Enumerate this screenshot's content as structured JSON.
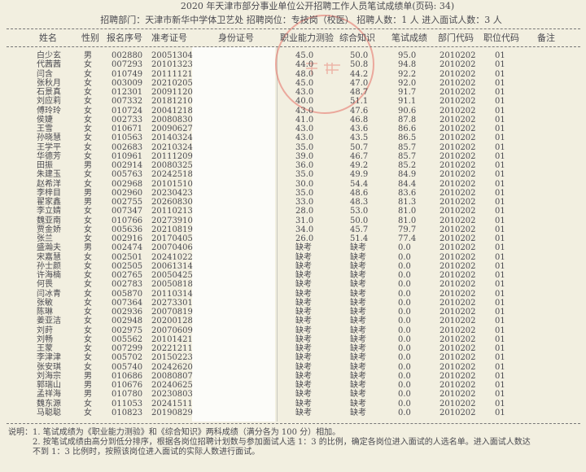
{
  "title": "2020 年天津市部分事业单位公开招聘工作人员笔试成绩单(页码:    34)",
  "subtitle": "招聘部门：天津市新华中学体卫艺处  招聘岗位：专技岗（校医）  招聘人数：1 人  进入面试人数：3 人",
  "stamp_text": "天津市新华中学",
  "colors": {
    "background": "#f2efe0",
    "stamp": "#e66e64",
    "text": "#4a4a50"
  },
  "columns": [
    "姓名",
    "性别",
    "报名序号",
    "准考证号",
    "身份证号",
    "职业能力测验",
    "综合知识",
    "笔试成绩",
    "部门代码",
    "职位代码",
    "备注"
  ],
  "rows": [
    {
      "name": "白少玄",
      "gender": "男",
      "reg": "002880",
      "ticket": "20051304",
      "ability": "45.0",
      "knowledge": "50.0",
      "score": "95.0",
      "dept": "2010202",
      "pos": "01"
    },
    {
      "name": "代茜茜",
      "gender": "女",
      "reg": "007293",
      "ticket": "20101323",
      "ability": "44.0",
      "knowledge": "50.8",
      "score": "94.8",
      "dept": "2010202",
      "pos": "01"
    },
    {
      "name": "闫含",
      "gender": "女",
      "reg": "010749",
      "ticket": "20111121",
      "ability": "48.0",
      "knowledge": "44.2",
      "score": "92.2",
      "dept": "2010202",
      "pos": "01"
    },
    {
      "name": "张秋月",
      "gender": "女",
      "reg": "003009",
      "ticket": "20210205",
      "ability": "45.0",
      "knowledge": "47.0",
      "score": "92.0",
      "dept": "2010202",
      "pos": "01"
    },
    {
      "name": "石景真",
      "gender": "女",
      "reg": "012301",
      "ticket": "20091120",
      "ability": "43.0",
      "knowledge": "48.7",
      "score": "91.7",
      "dept": "2010202",
      "pos": "01"
    },
    {
      "name": "刘应莉",
      "gender": "女",
      "reg": "007332",
      "ticket": "20181210",
      "ability": "40.0",
      "knowledge": "51.1",
      "score": "91.1",
      "dept": "2010202",
      "pos": "01"
    },
    {
      "name": "傅玲玲",
      "gender": "女",
      "reg": "010724",
      "ticket": "20041218",
      "ability": "43.0",
      "knowledge": "47.6",
      "score": "90.6",
      "dept": "2010202",
      "pos": "01"
    },
    {
      "name": "侯婕",
      "gender": "女",
      "reg": "002733",
      "ticket": "20080830",
      "ability": "41.0",
      "knowledge": "46.8",
      "score": "87.8",
      "dept": "2010202",
      "pos": "01"
    },
    {
      "name": "王雪",
      "gender": "女",
      "reg": "010671",
      "ticket": "20090627",
      "ability": "43.0",
      "knowledge": "43.6",
      "score": "86.6",
      "dept": "2010202",
      "pos": "01"
    },
    {
      "name": "孙晓慧",
      "gender": "女",
      "reg": "010563",
      "ticket": "20140324",
      "ability": "43.0",
      "knowledge": "43.5",
      "score": "86.5",
      "dept": "2010202",
      "pos": "01"
    },
    {
      "name": "王学平",
      "gender": "女",
      "reg": "002683",
      "ticket": "20210324",
      "ability": "35.0",
      "knowledge": "50.7",
      "score": "85.7",
      "dept": "2010202",
      "pos": "01"
    },
    {
      "name": "华德芳",
      "gender": "女",
      "reg": "010961",
      "ticket": "20111209",
      "ability": "39.0",
      "knowledge": "46.7",
      "score": "85.7",
      "dept": "2010202",
      "pos": "01"
    },
    {
      "name": "田振",
      "gender": "男",
      "reg": "002914",
      "ticket": "20080325",
      "ability": "36.0",
      "knowledge": "49.2",
      "score": "85.2",
      "dept": "2010202",
      "pos": "01"
    },
    {
      "name": "朱建玉",
      "gender": "女",
      "reg": "005763",
      "ticket": "20242518",
      "ability": "35.0",
      "knowledge": "49.9",
      "score": "84.9",
      "dept": "2010202",
      "pos": "01"
    },
    {
      "name": "赵希洋",
      "gender": "女",
      "reg": "002968",
      "ticket": "20101510",
      "ability": "30.0",
      "knowledge": "54.4",
      "score": "84.4",
      "dept": "2010202",
      "pos": "01"
    },
    {
      "name": "李梓目",
      "gender": "男",
      "reg": "002960",
      "ticket": "20230423",
      "ability": "35.0",
      "knowledge": "48.6",
      "score": "83.6",
      "dept": "2010202",
      "pos": "01"
    },
    {
      "name": "翟家鑫",
      "gender": "男",
      "reg": "002755",
      "ticket": "20260830",
      "ability": "33.0",
      "knowledge": "48.3",
      "score": "81.3",
      "dept": "2010202",
      "pos": "01"
    },
    {
      "name": "李立婧",
      "gender": "女",
      "reg": "007347",
      "ticket": "20110213",
      "ability": "28.0",
      "knowledge": "53.0",
      "score": "81.0",
      "dept": "2010202",
      "pos": "01"
    },
    {
      "name": "魏亚南",
      "gender": "女",
      "reg": "010766",
      "ticket": "20273910",
      "ability": "31.0",
      "knowledge": "50.0",
      "score": "81.0",
      "dept": "2010202",
      "pos": "01"
    },
    {
      "name": "贾金娇",
      "gender": "女",
      "reg": "005636",
      "ticket": "20210819",
      "ability": "34.0",
      "knowledge": "45.7",
      "score": "79.7",
      "dept": "2010202",
      "pos": "01"
    },
    {
      "name": "张兰",
      "gender": "女",
      "reg": "002916",
      "ticket": "20170405",
      "ability": "26.0",
      "knowledge": "51.4",
      "score": "77.4",
      "dept": "2010202",
      "pos": "01"
    },
    {
      "name": "盛瀚夫",
      "gender": "男",
      "reg": "002474",
      "ticket": "20070406",
      "ability": "缺考",
      "knowledge": "缺考",
      "score": "0.0",
      "dept": "2010202",
      "pos": "01"
    },
    {
      "name": "宋嘉慧",
      "gender": "女",
      "reg": "002501",
      "ticket": "20241022",
      "ability": "缺考",
      "knowledge": "缺考",
      "score": "0.0",
      "dept": "2010202",
      "pos": "01"
    },
    {
      "name": "孙士颜",
      "gender": "女",
      "reg": "002505",
      "ticket": "20061314",
      "ability": "缺考",
      "knowledge": "缺考",
      "score": "0.0",
      "dept": "2010202",
      "pos": "01"
    },
    {
      "name": "许海楠",
      "gender": "女",
      "reg": "002765",
      "ticket": "20050425",
      "ability": "缺考",
      "knowledge": "缺考",
      "score": "0.0",
      "dept": "2010202",
      "pos": "01"
    },
    {
      "name": "何畏",
      "gender": "女",
      "reg": "002783",
      "ticket": "20050818",
      "ability": "缺考",
      "knowledge": "缺考",
      "score": "0.0",
      "dept": "2010202",
      "pos": "01"
    },
    {
      "name": "闫冰青",
      "gender": "女",
      "reg": "005870",
      "ticket": "20110314",
      "ability": "缺考",
      "knowledge": "缺考",
      "score": "0.0",
      "dept": "2010202",
      "pos": "01"
    },
    {
      "name": "张敏",
      "gender": "女",
      "reg": "007364",
      "ticket": "20273301",
      "ability": "缺考",
      "knowledge": "缺考",
      "score": "0.0",
      "dept": "2010202",
      "pos": "01"
    },
    {
      "name": "陈琳",
      "gender": "女",
      "reg": "002936",
      "ticket": "20070819",
      "ability": "缺考",
      "knowledge": "缺考",
      "score": "0.0",
      "dept": "2010202",
      "pos": "01"
    },
    {
      "name": "姜亚洁",
      "gender": "女",
      "reg": "002948",
      "ticket": "20200128",
      "ability": "缺考",
      "knowledge": "缺考",
      "score": "0.0",
      "dept": "2010202",
      "pos": "01"
    },
    {
      "name": "刘莳",
      "gender": "女",
      "reg": "002975",
      "ticket": "20070609",
      "ability": "缺考",
      "knowledge": "缺考",
      "score": "0.0",
      "dept": "2010202",
      "pos": "01"
    },
    {
      "name": "刘畅",
      "gender": "女",
      "reg": "005562",
      "ticket": "20101421",
      "ability": "缺考",
      "knowledge": "缺考",
      "score": "0.0",
      "dept": "2010202",
      "pos": "01"
    },
    {
      "name": "王蒙",
      "gender": "女",
      "reg": "007299",
      "ticket": "20221211",
      "ability": "缺考",
      "knowledge": "缺考",
      "score": "0.0",
      "dept": "2010202",
      "pos": "01"
    },
    {
      "name": "李津津",
      "gender": "女",
      "reg": "005702",
      "ticket": "20150223",
      "ability": "缺考",
      "knowledge": "缺考",
      "score": "0.0",
      "dept": "2010202",
      "pos": "01"
    },
    {
      "name": "张安琪",
      "gender": "女",
      "reg": "005740",
      "ticket": "20242620",
      "ability": "缺考",
      "knowledge": "缺考",
      "score": "0.0",
      "dept": "2010202",
      "pos": "01"
    },
    {
      "name": "刘海宗",
      "gender": "男",
      "reg": "010686",
      "ticket": "20080807",
      "ability": "缺考",
      "knowledge": "缺考",
      "score": "0.0",
      "dept": "2010202",
      "pos": "01"
    },
    {
      "name": "郭瑞山",
      "gender": "男",
      "reg": "010676",
      "ticket": "20240625",
      "ability": "缺考",
      "knowledge": "缺考",
      "score": "0.0",
      "dept": "2010202",
      "pos": "01"
    },
    {
      "name": "孟祥海",
      "gender": "男",
      "reg": "010780",
      "ticket": "20230803",
      "ability": "缺考",
      "knowledge": "缺考",
      "score": "0.0",
      "dept": "2010202",
      "pos": "01"
    },
    {
      "name": "魏东源",
      "gender": "女",
      "reg": "011053",
      "ticket": "20241511",
      "ability": "缺考",
      "knowledge": "缺考",
      "score": "0.0",
      "dept": "2010202",
      "pos": "01"
    },
    {
      "name": "马聪聪",
      "gender": "女",
      "reg": "010823",
      "ticket": "20190829",
      "ability": "缺考",
      "knowledge": "缺考",
      "score": "0.0",
      "dept": "2010202",
      "pos": "01"
    }
  ],
  "notes": [
    "说明：1. 笔试成绩为《职业能力测验》和《综合知识》两科成绩（满分各为 100 分）相加。",
    "2. 按笔试成绩由高分到低分排序，根据各岗位招聘计划数与参加面试人选 1：3 的比例，确定各岗位进入面试的人选名单。进入面试人数达",
    "不到 1：3 比例时，按照该岗位进入面试的实际人数进行面试。"
  ]
}
